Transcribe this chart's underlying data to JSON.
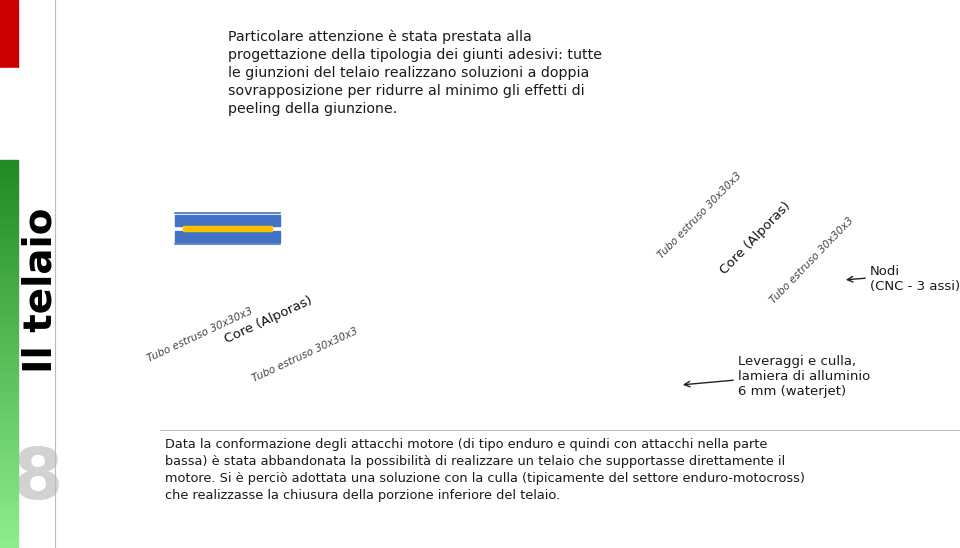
{
  "bg_color": "#ffffff",
  "top_text_lines": [
    "Particolare attenzione è stata prestata alla",
    "progettazione della tipologia dei giunti adesivi: tutte",
    "le giunzioni del telaio realizzano soluzioni a doppia",
    "sovrapposizione per ridurre al minimo gli effetti di",
    "peeling della giunzione."
  ],
  "label_nodi": "Nodi\n(CNC - 3 assi)",
  "label_leveraggi": "Leveraggi e culla,\nlamiera di alluminio\n6 mm (waterjet)",
  "label_core_left": "Core (Alporas)",
  "label_tubo_left_top": "Tubo estruso 30x30x3",
  "label_tubo_left_bot": "Tubo estruso 30x30x3",
  "label_core_right": "Core (Alporas)",
  "label_tubo_right_top": "Tubo estruso 30x30x3",
  "label_tubo_right_bot": "Tubo estruso 30x30x3",
  "side_title": "Il telaio",
  "page_number": "8",
  "bottom_text_lines": [
    "Data la conformazione degli attacchi motore (di tipo enduro e quindi con attacchi nella parte",
    "bassa) è stata abbandonata la possibilità di realizzare un telaio che supportasse direttamente il",
    "motore. Si è perciò adottata una soluzione con la culla (tipicamente del settore enduro-motocross)",
    "che realizzasse la chiusura della porzione inferiore del telaio."
  ],
  "separator_line_color": "#bbbbbb",
  "text_color": "#1a1a1a",
  "arrow_color": "#222222",
  "left_bar_red": "#cc0000",
  "left_bar_green": "#228b22",
  "schematic_blue": "#4472c4",
  "schematic_yellow": "#ffc000"
}
